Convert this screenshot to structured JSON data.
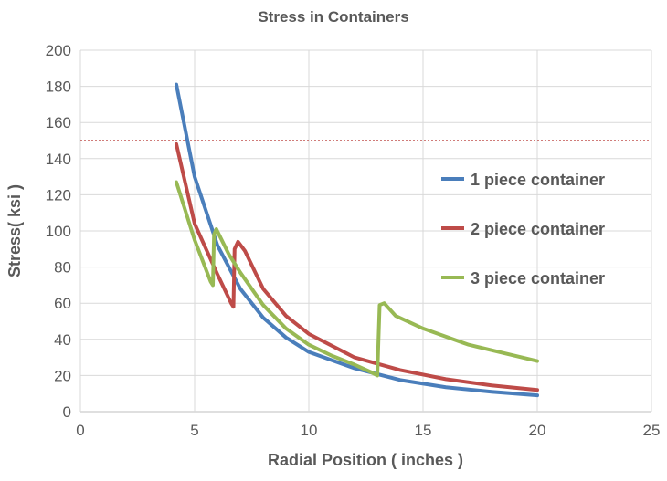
{
  "chart_data": {
    "type": "line",
    "title": "Stress in Containers",
    "xlabel": "Radial Position ( inches )",
    "ylabel": "Stress( ksi )",
    "xlim": [
      0,
      25
    ],
    "ylim": [
      0,
      200
    ],
    "xticks": [
      0,
      5,
      10,
      15,
      20,
      25
    ],
    "yticks": [
      0,
      20,
      40,
      60,
      80,
      100,
      120,
      140,
      160,
      180,
      200
    ],
    "grid": true,
    "legend_placement": "right",
    "reference_line": {
      "y": 150,
      "color": "#C0504D",
      "style": "dotted"
    },
    "series": [
      {
        "name": "1 piece container",
        "color": "#4A7EBB",
        "x": [
          4.2,
          5,
          6,
          7,
          8,
          9,
          10,
          12,
          14,
          16,
          18,
          20
        ],
        "y": [
          181,
          130,
          92,
          68,
          52,
          41,
          33,
          24,
          17.5,
          13.5,
          11,
          9
        ]
      },
      {
        "name": "2 piece container",
        "color": "#BE4B48",
        "x": [
          4.2,
          5,
          6,
          6.6,
          6.7,
          6.75,
          6.9,
          7.2,
          8,
          9,
          10,
          12,
          14,
          16,
          18,
          20
        ],
        "y": [
          148,
          104,
          76,
          60,
          58,
          90,
          94,
          89,
          68,
          53,
          43,
          30,
          23,
          18,
          14.5,
          12
        ]
      },
      {
        "name": "3 piece container",
        "color": "#98B954",
        "x": [
          4.2,
          5,
          5.7,
          5.8,
          5.85,
          5.95,
          6.5,
          7,
          8,
          9,
          10,
          11,
          12,
          12.7,
          13,
          13.05,
          13.1,
          13.3,
          13.8,
          15,
          17,
          20
        ],
        "y": [
          127,
          95,
          72,
          70,
          98,
          101,
          87,
          77,
          59,
          46,
          37,
          31,
          26,
          22,
          20,
          40,
          59,
          60,
          53,
          46,
          37,
          28
        ]
      }
    ]
  }
}
